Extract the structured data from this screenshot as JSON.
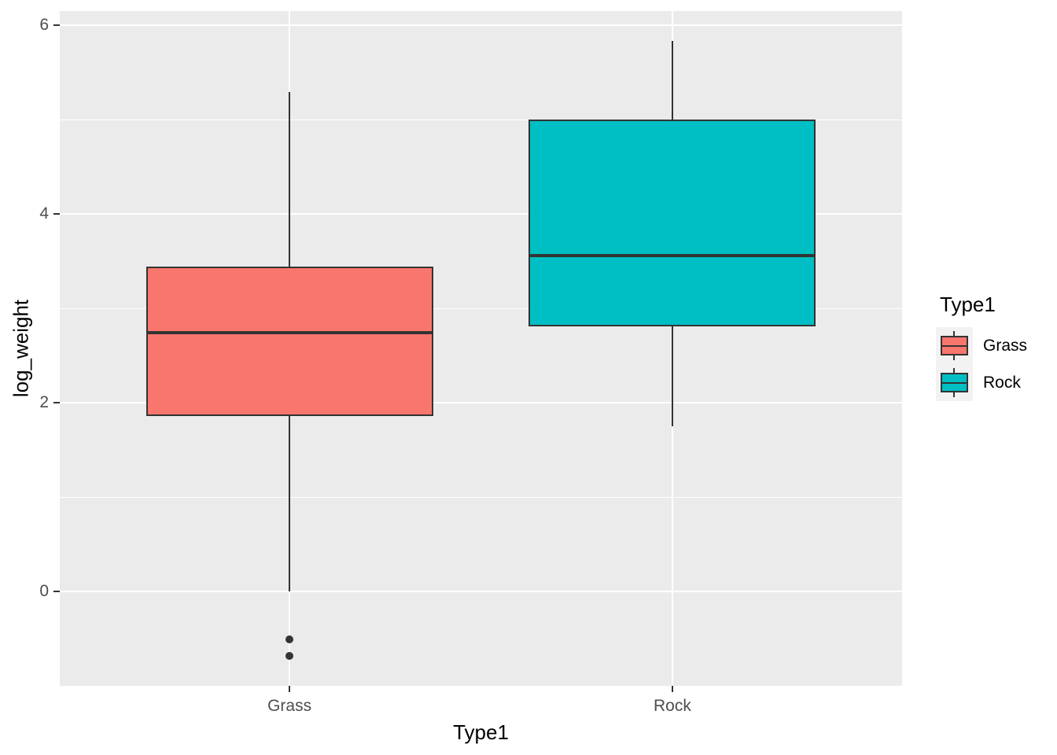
{
  "colors": {
    "panel_bg": "#EBEBEB",
    "grid": "#FFFFFF",
    "box_border": "#333333",
    "median": "#333333",
    "whisker": "#333333",
    "outlier": "#333333",
    "tick_mark": "#333333",
    "axis_text": "#4D4D4D",
    "axis_title_text": "#000000",
    "legend_key_bg": "#F2F2F2",
    "grass_fill": "#F8766D",
    "rock_fill": "#00BFC4"
  },
  "chart_data": {
    "type": "boxplot",
    "title": "",
    "xlabel": "Type1",
    "ylabel": "log_weight",
    "categories": [
      "Grass",
      "Rock"
    ],
    "ylim": [
      -1.0,
      6.15
    ],
    "y_major_ticks": [
      0,
      2,
      4,
      6
    ],
    "y_minor_ticks": [
      -1,
      1,
      3,
      5
    ],
    "grid": true,
    "legend": {
      "title": "Type1",
      "position": "right",
      "entries": [
        {
          "label": "Grass",
          "color": "#F8766D"
        },
        {
          "label": "Rock",
          "color": "#00BFC4"
        }
      ]
    },
    "series": [
      {
        "name": "Grass",
        "color": "#F8766D",
        "whisker_low": 0.0,
        "q1": 1.86,
        "median": 2.74,
        "q3": 3.44,
        "whisker_high": 5.29,
        "outliers": [
          -0.51,
          -0.68
        ]
      },
      {
        "name": "Rock",
        "color": "#00BFC4",
        "whisker_low": 1.75,
        "q1": 2.81,
        "median": 3.56,
        "q3": 5.0,
        "whisker_high": 5.83,
        "outliers": []
      }
    ]
  }
}
